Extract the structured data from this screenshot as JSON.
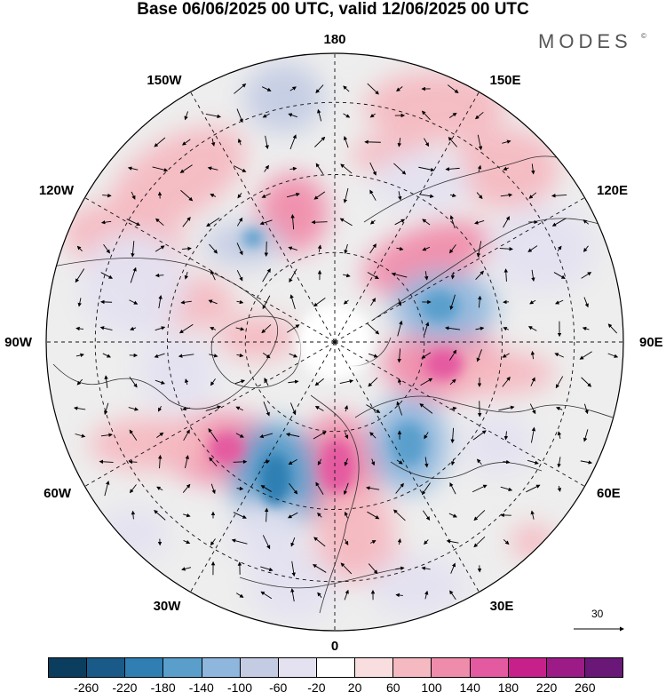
{
  "header": {
    "title": "Base 06/06/2025 00 UTC, valid 12/06/2025 00 UTC",
    "brand": "MODES",
    "brand_mark": "©"
  },
  "map": {
    "projection": "north polar stereographic",
    "longitude_labels": [
      {
        "id": "180",
        "text": "180"
      },
      {
        "id": "150e",
        "text": "150E"
      },
      {
        "id": "120e",
        "text": "120E"
      },
      {
        "id": "90e",
        "text": "90E"
      },
      {
        "id": "60e",
        "text": "60E"
      },
      {
        "id": "30e",
        "text": "30E"
      },
      {
        "id": "0",
        "text": "0"
      },
      {
        "id": "30w",
        "text": "30W"
      },
      {
        "id": "60w",
        "text": "60W"
      },
      {
        "id": "90w",
        "text": "90W"
      },
      {
        "id": "120w",
        "text": "120W"
      },
      {
        "id": "150w",
        "text": "150W"
      }
    ],
    "reference_vector": {
      "value": "30",
      "icon": "arrow-right-icon"
    }
  },
  "colorbar": {
    "colors": [
      "#0b3d5e",
      "#1a5a88",
      "#2f7fb3",
      "#5a9fcc",
      "#8fb6dc",
      "#c4cce4",
      "#e4e2f0",
      "#ffffff",
      "#f8dede",
      "#f4b9c1",
      "#f08cab",
      "#e45aa0",
      "#c8208a",
      "#9c1b86",
      "#6a1878"
    ],
    "ticks": [
      "-260",
      "-220",
      "-180",
      "-140",
      "-100",
      "-60",
      "-20",
      "20",
      "60",
      "100",
      "140",
      "180",
      "220",
      "260"
    ]
  }
}
